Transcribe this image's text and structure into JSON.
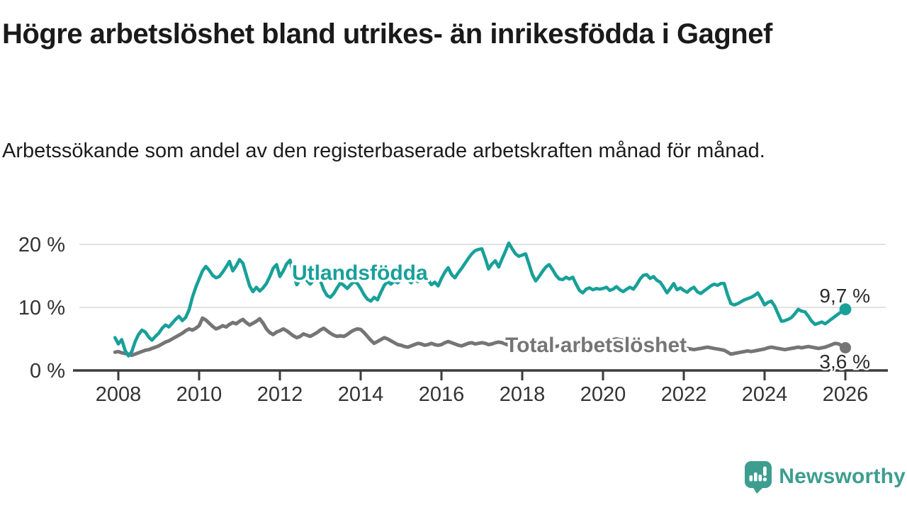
{
  "header": {
    "title": "Högre arbetslöshet bland utrikes- än inrikesfödda i Gagnef",
    "subtitle": "Arbetssökande som andel av den registerbaserade arbetskraften månad för månad."
  },
  "chart_data": {
    "type": "line",
    "title": "Högre arbetslöshet bland utrikes- än inrikesfödda i Gagnef",
    "subtitle": "Arbetssökande som andel av den registerbaserade arbetskraften månad för månad.",
    "unit": "%",
    "frequency": "monthly",
    "x_start": "2007-12",
    "x_end": "2026-01",
    "x_tick_labels": [
      "2008",
      "2010",
      "2012",
      "2014",
      "2016",
      "2018",
      "2020",
      "2022",
      "2024",
      "2026"
    ],
    "y_ticks": [
      {
        "label": "0 %",
        "value": 0
      },
      {
        "label": "10 %",
        "value": 10
      },
      {
        "label": "20 %",
        "value": 20
      }
    ],
    "ylim": [
      0,
      21
    ],
    "grid": "horizontal",
    "legend": "inline-labels",
    "series": [
      {
        "name": "Utlandsfödda",
        "color": "#18a099",
        "end_label": "9,7 %",
        "end_value": 9.7,
        "values": [
          5.2,
          4.2,
          4.9,
          3.2,
          2.3,
          3.0,
          4.6,
          5.7,
          6.4,
          6.1,
          5.3,
          4.8,
          5.4,
          5.9,
          6.7,
          7.2,
          6.9,
          7.5,
          8.1,
          8.6,
          7.9,
          8.4,
          9.6,
          11.6,
          13.2,
          14.5,
          15.8,
          16.5,
          15.9,
          15.1,
          14.7,
          14.9,
          15.6,
          16.4,
          17.3,
          15.8,
          16.6,
          17.6,
          17.0,
          15.2,
          13.4,
          12.5,
          13.2,
          12.6,
          13.1,
          13.8,
          14.9,
          16.2,
          16.8,
          14.9,
          15.8,
          16.9,
          17.5,
          15.4,
          13.6,
          14.4,
          15.1,
          14.3,
          13.7,
          14.3,
          14.9,
          14.3,
          12.8,
          11.9,
          11.6,
          12.2,
          13.1,
          13.9,
          13.5,
          13.0,
          13.6,
          14.1,
          13.8,
          13.0,
          12.0,
          11.3,
          11.0,
          11.6,
          11.2,
          12.4,
          13.5,
          14.1,
          13.7,
          14.2,
          13.9,
          14.4,
          14.9,
          14.3,
          13.9,
          14.5,
          14.1,
          14.7,
          15.1,
          14.4,
          13.6,
          14.0,
          13.4,
          14.6,
          15.6,
          16.3,
          15.2,
          14.7,
          15.5,
          16.2,
          17.0,
          17.8,
          18.5,
          19.0,
          19.2,
          19.3,
          17.8,
          16.1,
          16.9,
          17.4,
          16.4,
          17.7,
          18.9,
          20.2,
          19.3,
          18.5,
          18.1,
          18.3,
          18.5,
          16.9,
          15.2,
          14.2,
          14.9,
          15.7,
          16.4,
          16.8,
          16.0,
          15.1,
          14.5,
          14.4,
          14.8,
          14.5,
          14.8,
          13.7,
          12.7,
          12.3,
          12.9,
          13.1,
          12.8,
          13.0,
          12.9,
          13.0,
          13.2,
          12.7,
          12.9,
          13.3,
          12.8,
          12.5,
          12.9,
          13.2,
          12.9,
          13.6,
          14.5,
          15.1,
          15.2,
          14.6,
          14.9,
          14.3,
          14.0,
          13.2,
          12.3,
          13.0,
          13.8,
          12.8,
          13.1,
          12.7,
          12.4,
          12.9,
          13.2,
          12.5,
          12.2,
          12.6,
          13.0,
          13.4,
          13.7,
          13.5,
          13.8,
          13.8,
          12.0,
          10.6,
          10.4,
          10.6,
          10.9,
          11.2,
          11.4,
          11.6,
          11.9,
          12.3,
          11.4,
          10.4,
          10.8,
          11.0,
          10.2,
          9.0,
          7.8,
          7.9,
          8.1,
          8.4,
          9.0,
          9.7,
          9.4,
          9.3,
          8.6,
          7.8,
          7.3,
          7.5,
          7.7,
          7.4,
          7.8,
          8.2,
          8.6,
          9.0,
          9.4,
          9.7
        ]
      },
      {
        "name": "Total arbetslöshet",
        "color": "#757575",
        "end_label": "3,6 %",
        "end_value": 3.6,
        "values": [
          2.9,
          3.0,
          2.8,
          2.7,
          2.6,
          2.4,
          2.6,
          2.8,
          3.0,
          3.2,
          3.3,
          3.5,
          3.7,
          3.9,
          4.2,
          4.5,
          4.7,
          5.0,
          5.3,
          5.6,
          5.9,
          6.3,
          6.6,
          6.4,
          6.7,
          7.1,
          8.3,
          8.0,
          7.5,
          7.0,
          6.6,
          6.8,
          7.1,
          6.9,
          7.3,
          7.6,
          7.4,
          7.8,
          8.1,
          7.6,
          7.2,
          7.5,
          7.8,
          8.2,
          7.5,
          6.6,
          6.0,
          5.7,
          6.1,
          6.3,
          6.6,
          6.3,
          5.9,
          5.5,
          5.2,
          5.4,
          5.8,
          5.6,
          5.4,
          5.7,
          6.0,
          6.4,
          6.7,
          6.3,
          5.9,
          5.6,
          5.4,
          5.5,
          5.4,
          5.7,
          6.1,
          6.4,
          6.6,
          6.5,
          6.0,
          5.4,
          4.8,
          4.3,
          4.6,
          4.9,
          5.2,
          5.0,
          4.7,
          4.4,
          4.1,
          4.0,
          3.8,
          3.7,
          3.9,
          4.1,
          4.3,
          4.2,
          4.0,
          4.1,
          4.3,
          4.1,
          4.0,
          4.1,
          4.4,
          4.6,
          4.4,
          4.2,
          4.0,
          3.9,
          4.1,
          4.3,
          4.4,
          4.2,
          4.3,
          4.4,
          4.3,
          4.1,
          4.2,
          4.4,
          4.5,
          4.4,
          4.2,
          4.0,
          3.9,
          4.0,
          4.1,
          4.0,
          4.2,
          4.3,
          4.1,
          3.9,
          3.8,
          3.9,
          4.0,
          3.8,
          3.7,
          3.8,
          3.9,
          4.0,
          4.1,
          3.9,
          3.8,
          3.7,
          3.8,
          3.9,
          4.0,
          3.9,
          3.8,
          3.9,
          4.0,
          4.1,
          4.3,
          4.6,
          4.9,
          5.0,
          4.9,
          4.8,
          4.7,
          4.6,
          4.5,
          4.4,
          4.3,
          4.2,
          4.3,
          4.2,
          4.1,
          4.0,
          3.9,
          3.8,
          3.7,
          3.6,
          3.5,
          3.4,
          3.5,
          3.4,
          3.5,
          3.4,
          3.3,
          3.4,
          3.5,
          3.6,
          3.7,
          3.6,
          3.5,
          3.4,
          3.3,
          3.2,
          2.9,
          2.6,
          2.7,
          2.8,
          2.9,
          3.0,
          3.1,
          3.0,
          3.1,
          3.2,
          3.3,
          3.4,
          3.6,
          3.7,
          3.6,
          3.5,
          3.4,
          3.3,
          3.4,
          3.5,
          3.6,
          3.7,
          3.6,
          3.7,
          3.8,
          3.7,
          3.6,
          3.5,
          3.6,
          3.7,
          3.9,
          4.1,
          4.3,
          4.2,
          3.9,
          3.6
        ]
      }
    ]
  },
  "footer": {
    "brand": "Newsworthy",
    "brand_color": "#3d9e8f",
    "logo_icon": "bar-chart-speech-bubble-icon"
  }
}
